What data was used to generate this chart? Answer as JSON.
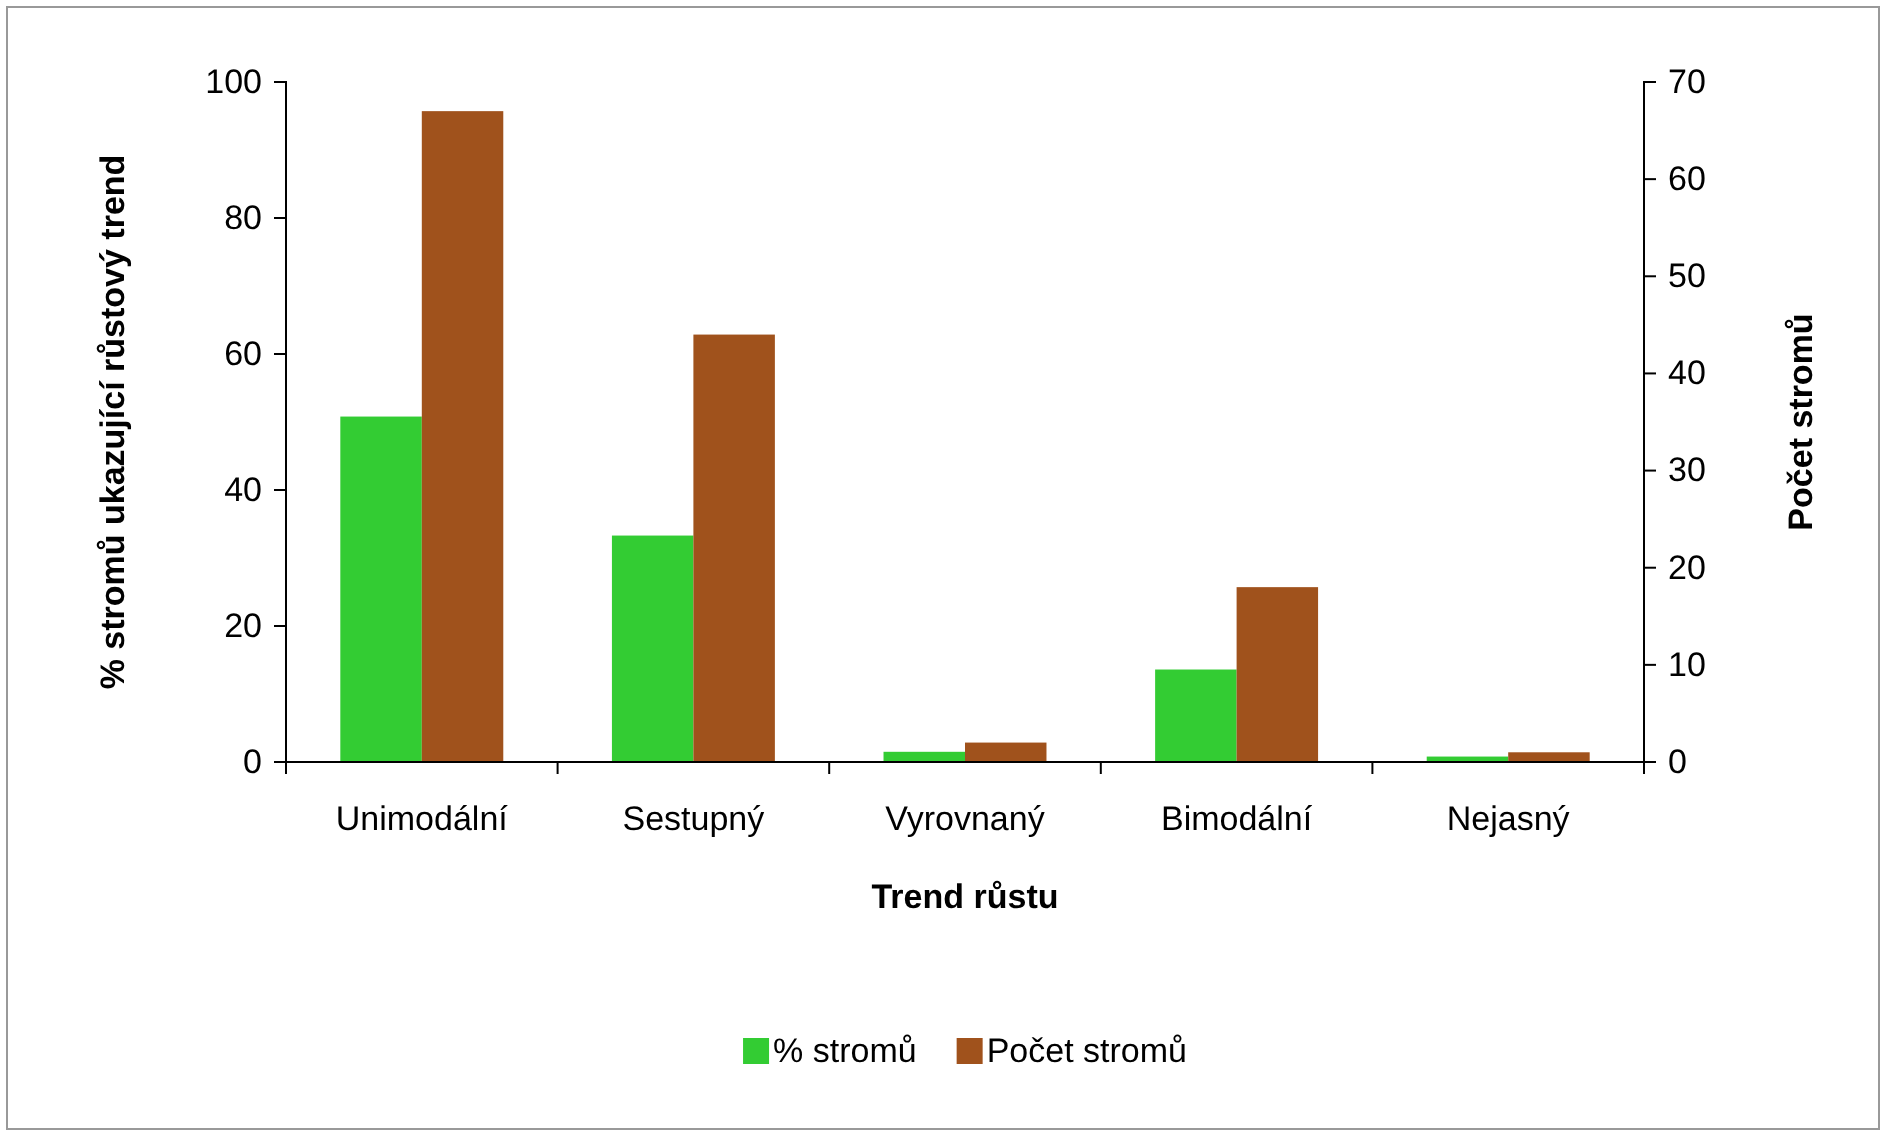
{
  "chart_data": {
    "type": "bar",
    "xlabel": "Trend růstu",
    "ylabel": "% stromů ukazující růstový trend",
    "y2label": "Počet stromů",
    "categories": [
      "Unimodální",
      "Sestupný",
      "Vyrovnaný",
      "Bimodální",
      "Nejasný"
    ],
    "series": [
      {
        "name": "% stromů",
        "color": "#33cc33",
        "values": [
          50.8,
          33.3,
          1.5,
          13.6,
          0.8
        ]
      },
      {
        "name": "Počet stromů",
        "color": "#a0521c",
        "axis": "y2",
        "values": [
          67,
          44,
          2,
          18,
          1
        ]
      }
    ],
    "ylim": [
      0,
      100
    ],
    "yticks": [
      0,
      20,
      40,
      60,
      80,
      100
    ],
    "y2lim": [
      0,
      70
    ],
    "y2ticks": [
      0,
      10,
      20,
      30,
      40,
      50,
      60,
      70
    ],
    "grid": false,
    "legend": "bottom"
  }
}
